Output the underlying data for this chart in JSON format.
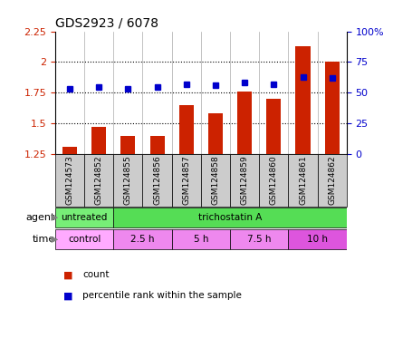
{
  "title": "GDS2923 / 6078",
  "samples": [
    "GSM124573",
    "GSM124852",
    "GSM124855",
    "GSM124856",
    "GSM124857",
    "GSM124858",
    "GSM124859",
    "GSM124860",
    "GSM124861",
    "GSM124862"
  ],
  "count_values": [
    1.31,
    1.47,
    1.4,
    1.4,
    1.65,
    1.58,
    1.76,
    1.7,
    2.13,
    2.0
  ],
  "percentile_values": [
    53,
    55,
    53,
    55,
    57,
    56,
    58,
    57,
    63,
    62
  ],
  "ylim_left": [
    1.25,
    2.25
  ],
  "ylim_right": [
    0,
    100
  ],
  "yticks_left": [
    1.25,
    1.5,
    1.75,
    2.0,
    2.25
  ],
  "yticks_right": [
    0,
    25,
    50,
    75,
    100
  ],
  "ytick_labels_left": [
    "1.25",
    "1.5",
    "1.75",
    "2",
    "2.25"
  ],
  "ytick_labels_right": [
    "0",
    "25",
    "50",
    "75",
    "100%"
  ],
  "bar_color": "#cc2200",
  "dot_color": "#0000cc",
  "agent_group_untreated": {
    "label": "untreated",
    "start": 0,
    "end": 1,
    "color": "#77ee77"
  },
  "agent_group_tsa": {
    "label": "trichostatin A",
    "start": 2,
    "end": 9,
    "color": "#55dd55"
  },
  "time_groups": [
    {
      "label": "control",
      "start": 0,
      "end": 1,
      "color": "#ffaaff"
    },
    {
      "label": "2.5 h",
      "start": 2,
      "end": 3,
      "color": "#ee88ee"
    },
    {
      "label": "5 h",
      "start": 4,
      "end": 5,
      "color": "#ee88ee"
    },
    {
      "label": "7.5 h",
      "start": 6,
      "end": 7,
      "color": "#ee88ee"
    },
    {
      "label": "10 h",
      "start": 8,
      "end": 9,
      "color": "#dd55dd"
    }
  ],
  "legend_count_label": "count",
  "legend_pct_label": "percentile rank within the sample",
  "agent_label": "agent",
  "time_label": "time",
  "bg_color": "#ffffff",
  "tick_label_bg": "#cccccc",
  "col_divider_color": "#aaaaaa",
  "gridline_color": "#000000",
  "border_color": "#000000"
}
